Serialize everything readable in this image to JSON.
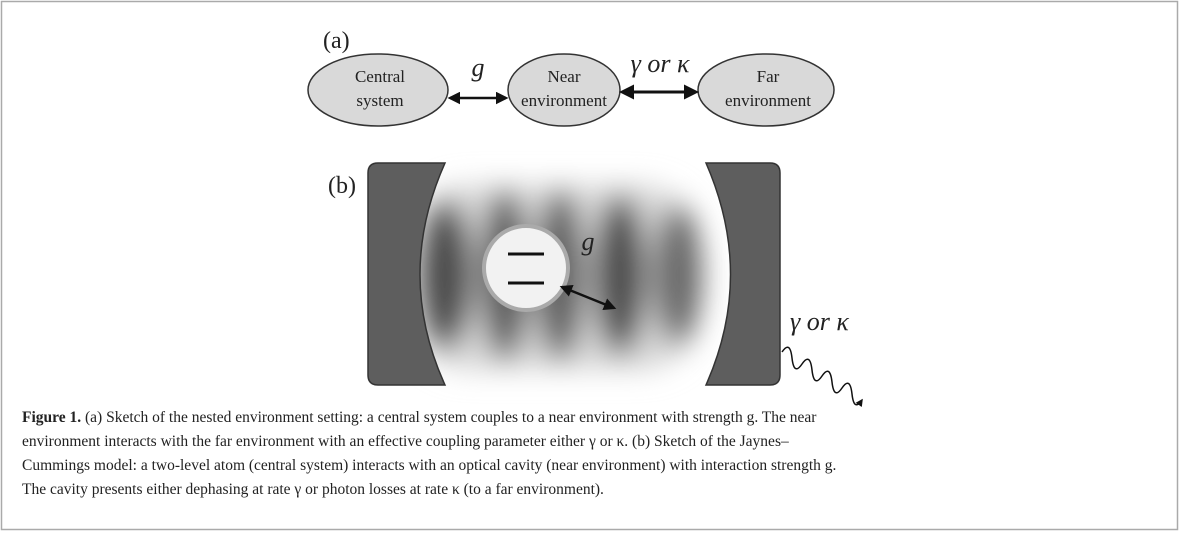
{
  "figure": {
    "panel_a": {
      "label": "(a)",
      "nodes": [
        {
          "label": [
            "Central",
            "system"
          ]
        },
        {
          "label": [
            "Near",
            "environment"
          ]
        },
        {
          "label": [
            "Far",
            "environment"
          ]
        }
      ],
      "edges": [
        {
          "label": "g"
        },
        {
          "label": "γ or κ"
        }
      ]
    },
    "panel_b": {
      "label": "(b)",
      "coupling": "g",
      "loss": "γ or κ"
    },
    "caption": {
      "label": "Figure 1.",
      "lines": [
        "(a) Sketch of the nested environment setting: a central system couples to a near environment with strength g. The near",
        "environment interacts with the far environment with an effective coupling parameter either γ or κ. (b) Sketch of the Jaynes–",
        "Cummings model: a two-level atom (central system) interacts with an optical cavity (near environment) with interaction strength g.",
        "The cavity presents either dephasing at rate γ or photon losses at rate κ (to a far environment)."
      ]
    }
  }
}
